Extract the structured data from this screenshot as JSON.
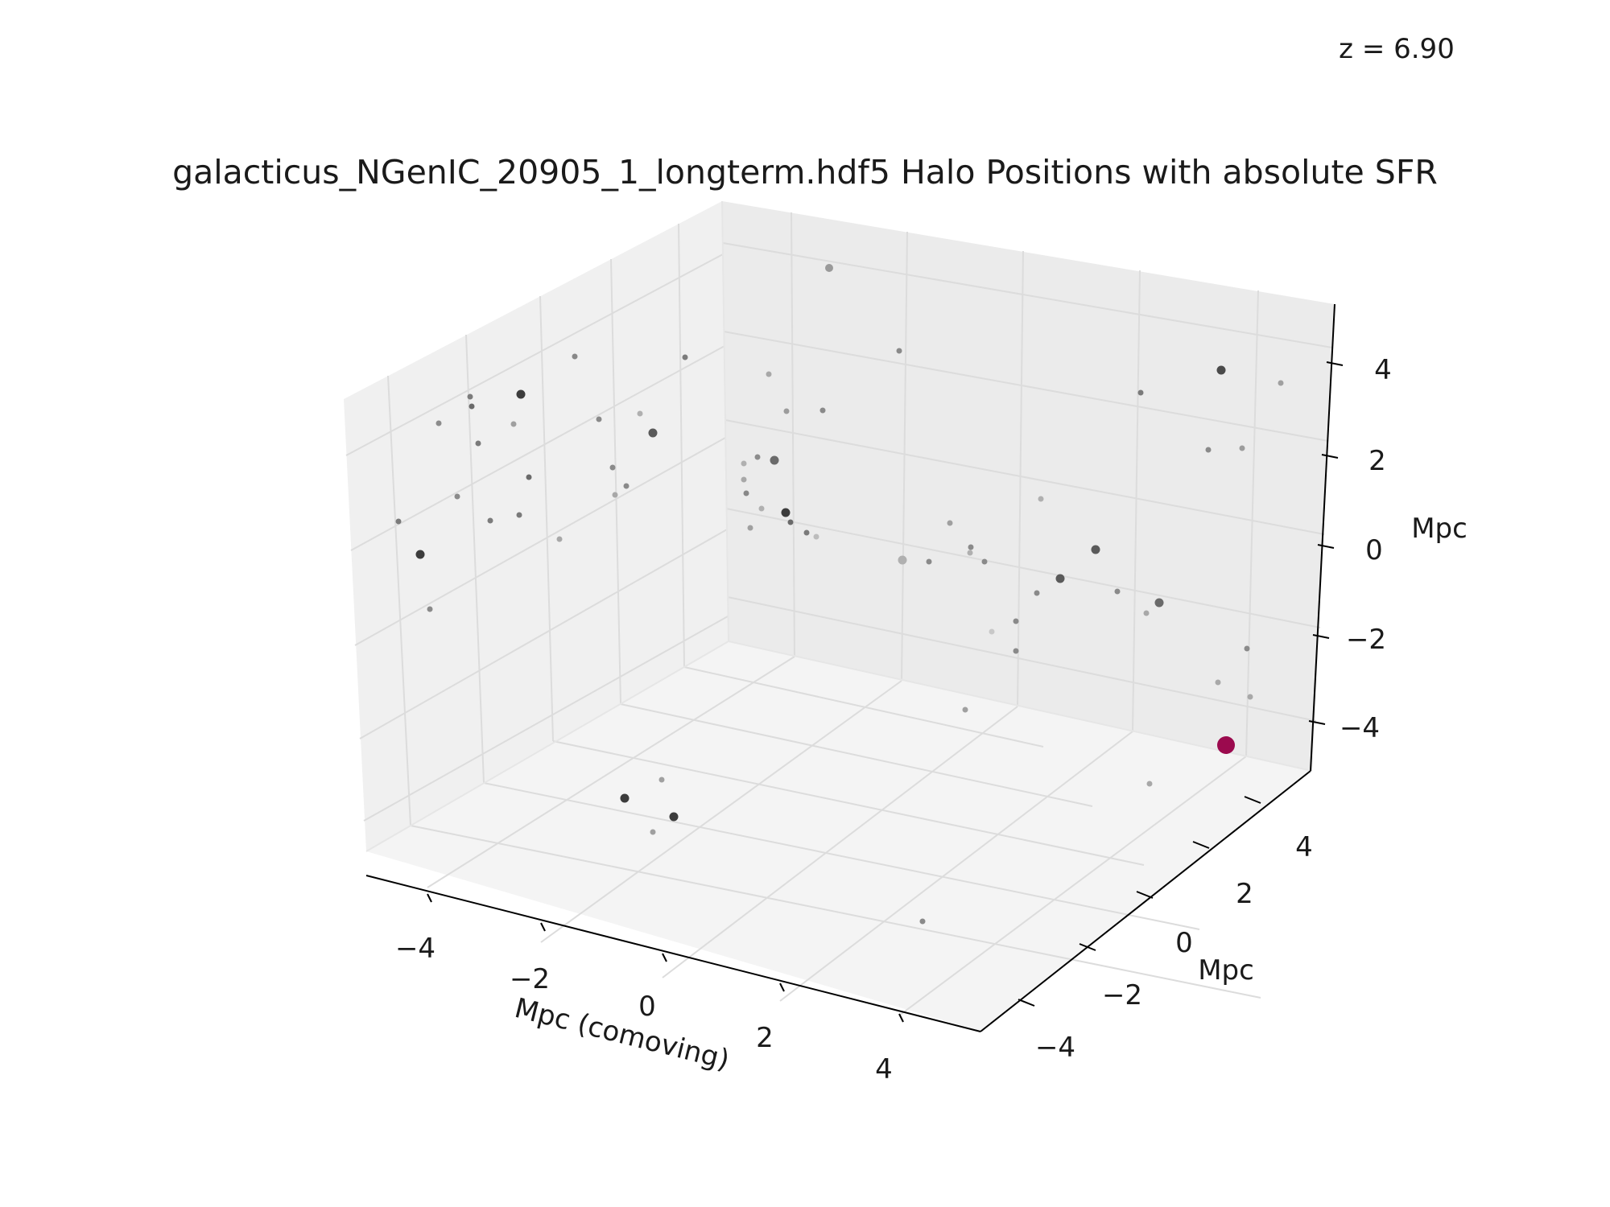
{
  "chart_data": {
    "type": "scatter",
    "title": "galacticus_NGenIC_20905_1_longterm.hdf5 Halo Positions with absolute SFR",
    "annotation": "z = 6.90",
    "xlabel": "Mpc (comoving)",
    "ylabel": "Mpc",
    "zlabel": "Mpc",
    "xlim": [
      -5,
      5
    ],
    "ylim": [
      -5,
      5
    ],
    "zlim": [
      -5,
      5
    ],
    "x_ticks": [
      "−4",
      "−2",
      "0",
      "2",
      "4"
    ],
    "y_ticks": [
      "−4",
      "−2",
      "0",
      "2",
      "4"
    ],
    "z_ticks": [
      "−4",
      "−2",
      "0",
      "2",
      "4"
    ],
    "grid": true,
    "colors": {
      "pane": "#f2f2f2",
      "grid": "#e2e2e2",
      "highlight": "#9b0a4e"
    },
    "points": [
      {
        "sx": 1030,
        "sy": 333,
        "r": 5,
        "c": "#9a9a9a"
      },
      {
        "sx": 1117,
        "sy": 436,
        "r": 3.5,
        "c": "#8a8a8a"
      },
      {
        "sx": 714,
        "sy": 443,
        "r": 3.5,
        "c": "#888888"
      },
      {
        "sx": 851,
        "sy": 444,
        "r": 3.5,
        "c": "#7c7c7c"
      },
      {
        "sx": 955,
        "sy": 465,
        "r": 3.5,
        "c": "#a8a8a8"
      },
      {
        "sx": 1517,
        "sy": 460,
        "r": 5.5,
        "c": "#4a4a4a"
      },
      {
        "sx": 1591,
        "sy": 476,
        "r": 3.5,
        "c": "#a0a0a0"
      },
      {
        "sx": 1417,
        "sy": 488,
        "r": 3.5,
        "c": "#7a7a7a"
      },
      {
        "sx": 584,
        "sy": 493,
        "r": 3.5,
        "c": "#7c7c7c"
      },
      {
        "sx": 647,
        "sy": 490,
        "r": 5.5,
        "c": "#3c3c3c"
      },
      {
        "sx": 586,
        "sy": 505,
        "r": 3.5,
        "c": "#6a6a6a"
      },
      {
        "sx": 977,
        "sy": 511,
        "r": 3.5,
        "c": "#9c9c9c"
      },
      {
        "sx": 1022,
        "sy": 510,
        "r": 3.5,
        "c": "#8a8a8a"
      },
      {
        "sx": 545,
        "sy": 526,
        "r": 3.5,
        "c": "#8c8c8c"
      },
      {
        "sx": 744,
        "sy": 521,
        "r": 3.5,
        "c": "#8a8a8a"
      },
      {
        "sx": 638,
        "sy": 527,
        "r": 3.5,
        "c": "#a0a0a0"
      },
      {
        "sx": 795,
        "sy": 514,
        "r": 3.5,
        "c": "#b0b0b0"
      },
      {
        "sx": 811,
        "sy": 538,
        "r": 5.5,
        "c": "#5a5a5a"
      },
      {
        "sx": 594,
        "sy": 551,
        "r": 3.5,
        "c": "#7a7a7a"
      },
      {
        "sx": 1501,
        "sy": 559,
        "r": 3.5,
        "c": "#8a8a8a"
      },
      {
        "sx": 1543,
        "sy": 557,
        "r": 3.5,
        "c": "#9c9c9c"
      },
      {
        "sx": 941,
        "sy": 568,
        "r": 3.5,
        "c": "#8c8c8c"
      },
      {
        "sx": 962,
        "sy": 572,
        "r": 5.5,
        "c": "#6a6a6a"
      },
      {
        "sx": 924,
        "sy": 576,
        "r": 3.5,
        "c": "#b0b0b0"
      },
      {
        "sx": 761,
        "sy": 581,
        "r": 3.5,
        "c": "#8a8a8a"
      },
      {
        "sx": 657,
        "sy": 593,
        "r": 3.5,
        "c": "#6a6a6a"
      },
      {
        "sx": 924,
        "sy": 596,
        "r": 3.5,
        "c": "#a8a8a8"
      },
      {
        "sx": 778,
        "sy": 604,
        "r": 3.5,
        "c": "#8a8a8a"
      },
      {
        "sx": 927,
        "sy": 613,
        "r": 3.5,
        "c": "#888888"
      },
      {
        "sx": 568,
        "sy": 617,
        "r": 3.5,
        "c": "#8a8a8a"
      },
      {
        "sx": 764,
        "sy": 615,
        "r": 3.5,
        "c": "#a8a8a8"
      },
      {
        "sx": 1293,
        "sy": 620,
        "r": 3.5,
        "c": "#b0b0b0"
      },
      {
        "sx": 946,
        "sy": 632,
        "r": 3.5,
        "c": "#b0b0b0"
      },
      {
        "sx": 976,
        "sy": 637,
        "r": 5.5,
        "c": "#3c3c3c"
      },
      {
        "sx": 645,
        "sy": 640,
        "r": 3.5,
        "c": "#7a7a7a"
      },
      {
        "sx": 609,
        "sy": 647,
        "r": 3.5,
        "c": "#7c7c7c"
      },
      {
        "sx": 495,
        "sy": 648,
        "r": 3.5,
        "c": "#7a7a7a"
      },
      {
        "sx": 982,
        "sy": 649,
        "r": 3.5,
        "c": "#6a6a6a"
      },
      {
        "sx": 1180,
        "sy": 650,
        "r": 3.5,
        "c": "#a0a0a0"
      },
      {
        "sx": 932,
        "sy": 656,
        "r": 3.5,
        "c": "#a0a0a0"
      },
      {
        "sx": 1002,
        "sy": 662,
        "r": 3.5,
        "c": "#7a7a7a"
      },
      {
        "sx": 1014,
        "sy": 667,
        "r": 3.5,
        "c": "#bcbcbc"
      },
      {
        "sx": 695,
        "sy": 670,
        "r": 3.5,
        "c": "#a8a8a8"
      },
      {
        "sx": 1206,
        "sy": 680,
        "r": 3.5,
        "c": "#8a8a8a"
      },
      {
        "sx": 1361,
        "sy": 683,
        "r": 5.5,
        "c": "#5a5a5a"
      },
      {
        "sx": 1205,
        "sy": 687,
        "r": 3.5,
        "c": "#b0b0b0"
      },
      {
        "sx": 522,
        "sy": 689,
        "r": 5.5,
        "c": "#3c3c3c"
      },
      {
        "sx": 1121,
        "sy": 696,
        "r": 5.5,
        "c": "#b0b0b0"
      },
      {
        "sx": 1154,
        "sy": 698,
        "r": 3.5,
        "c": "#8a8a8a"
      },
      {
        "sx": 1223,
        "sy": 698,
        "r": 3.5,
        "c": "#8a8a8a"
      },
      {
        "sx": 1317,
        "sy": 719,
        "r": 5.5,
        "c": "#5a5a5a"
      },
      {
        "sx": 1388,
        "sy": 735,
        "r": 3.5,
        "c": "#8a8a8a"
      },
      {
        "sx": 1288,
        "sy": 737,
        "r": 3.5,
        "c": "#8a8a8a"
      },
      {
        "sx": 1440,
        "sy": 749,
        "r": 5.5,
        "c": "#6a6a6a"
      },
      {
        "sx": 1424,
        "sy": 762,
        "r": 3.5,
        "c": "#a8a8a8"
      },
      {
        "sx": 534,
        "sy": 757,
        "r": 3.5,
        "c": "#8a8a8a"
      },
      {
        "sx": 1262,
        "sy": 772,
        "r": 3.5,
        "c": "#8a8a8a"
      },
      {
        "sx": 1232,
        "sy": 785,
        "r": 3.5,
        "c": "#c8c8c8"
      },
      {
        "sx": 1549,
        "sy": 806,
        "r": 3.5,
        "c": "#8a8a8a"
      },
      {
        "sx": 1262,
        "sy": 809,
        "r": 3.5,
        "c": "#8a8a8a"
      },
      {
        "sx": 1513,
        "sy": 848,
        "r": 3.5,
        "c": "#a8a8a8"
      },
      {
        "sx": 1553,
        "sy": 866,
        "r": 3.5,
        "c": "#a8a8a8"
      },
      {
        "sx": 1199,
        "sy": 882,
        "r": 3.5,
        "c": "#a0a0a0"
      },
      {
        "sx": 1523,
        "sy": 926,
        "r": 11,
        "c": "#9b0a4e"
      },
      {
        "sx": 822,
        "sy": 969,
        "r": 3.5,
        "c": "#a0a0a0"
      },
      {
        "sx": 1428,
        "sy": 974,
        "r": 3.5,
        "c": "#a8a8a8"
      },
      {
        "sx": 776,
        "sy": 992,
        "r": 5.5,
        "c": "#3c3c3c"
      },
      {
        "sx": 837,
        "sy": 1015,
        "r": 5.5,
        "c": "#3c3c3c"
      },
      {
        "sx": 811,
        "sy": 1034,
        "r": 3.5,
        "c": "#a0a0a0"
      },
      {
        "sx": 1146,
        "sy": 1145,
        "r": 3.5,
        "c": "#8a8a8a"
      }
    ]
  }
}
